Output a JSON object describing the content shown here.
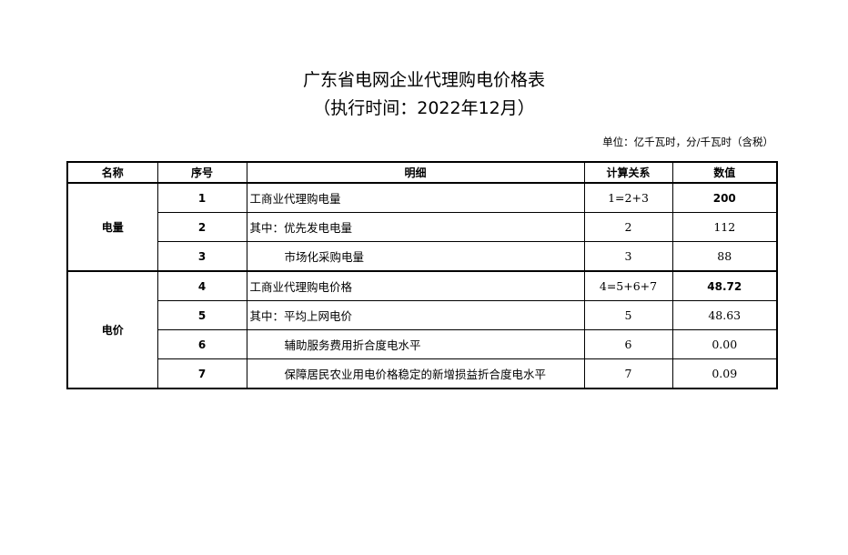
{
  "title": "广东省电网企业代理购电价格表",
  "subtitle": "（执行时间：2022年12月）",
  "unit": "单位：亿千瓦时，分/千瓦时（含税）",
  "headers": [
    "名称",
    "序号",
    "明细",
    "计算关系",
    "数值"
  ],
  "groups": [
    {
      "name": "电量",
      "rows": [
        {
          "no": "1",
          "detail": "工商业代理购电量",
          "calc": "1=2+3",
          "value": "200"
        },
        {
          "no": "2",
          "detail": "其中：优先发电电量",
          "calc": "2",
          "value": "112"
        },
        {
          "no": "3",
          "detail": "市场化采购电量",
          "calc": "3",
          "value": "88"
        }
      ]
    },
    {
      "name": "电价",
      "rows": [
        {
          "no": "4",
          "detail": "工商业代理购电价格",
          "calc": "4=5+6+7",
          "value": "48.72"
        },
        {
          "no": "5",
          "detail": "其中：平均上网电价",
          "calc": "5",
          "value": "48.63"
        },
        {
          "no": "6",
          "detail": "辅助服务费用折合度电水平",
          "calc": "6",
          "value": "0.00"
        },
        {
          "no": "7",
          "detail": "保障居民农业用电价格稳定的新增损益折合度电水平",
          "calc": "7",
          "value": "0.09"
        }
      ]
    }
  ]
}
